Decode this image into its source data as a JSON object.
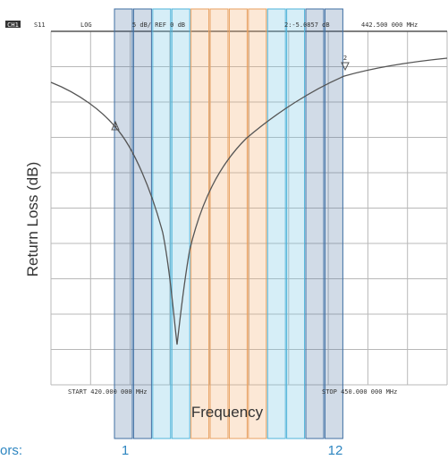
{
  "header": {
    "channel": "CH1",
    "param": "S11",
    "format": "LOG",
    "scale": "5 dB/ REF 0 dB",
    "marker_readout": "2:-5.0857 dB",
    "marker_freq": "442.500 000 MHz"
  },
  "footer": {
    "start": "START 420.000 000 MHz",
    "stop": "STOP 450.000 000 MHz"
  },
  "axes": {
    "y_label": "Return Loss (dB)",
    "x_label": "Frequency"
  },
  "markers": [
    "1",
    "2"
  ],
  "legend": {
    "prefix": "ors:",
    "first": "1",
    "last": "12"
  }
}
